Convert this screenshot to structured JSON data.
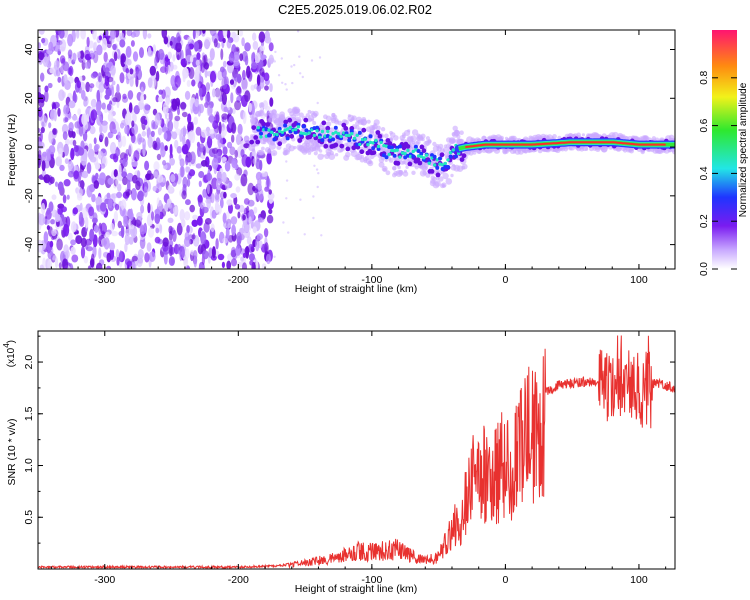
{
  "title": "C2E5.2025.019.06.02.R02",
  "chart_data": [
    {
      "type": "heatmap",
      "xlabel": "Height of straight line (km)",
      "ylabel": "Frequency (Hz)",
      "xlim": [
        -350,
        127
      ],
      "ylim": [
        -50,
        48
      ],
      "xticks": [
        -300,
        -200,
        -100,
        0,
        100
      ],
      "yticks": [
        40,
        20,
        0,
        -20,
        -40
      ],
      "noise_region_x": [
        -350,
        -175
      ],
      "signal_track": [
        {
          "x": -190,
          "y": 6
        },
        {
          "x": -170,
          "y": 6
        },
        {
          "x": -155,
          "y": 7
        },
        {
          "x": -140,
          "y": 5
        },
        {
          "x": -125,
          "y": 5
        },
        {
          "x": -110,
          "y": 3
        },
        {
          "x": -95,
          "y": 1
        },
        {
          "x": -85,
          "y": -3
        },
        {
          "x": -75,
          "y": -2
        },
        {
          "x": -65,
          "y": -3
        },
        {
          "x": -55,
          "y": -6
        },
        {
          "x": -45,
          "y": -8
        },
        {
          "x": -38,
          "y": -1
        },
        {
          "x": -30,
          "y": 0
        },
        {
          "x": -15,
          "y": 1
        },
        {
          "x": 0,
          "y": 1
        },
        {
          "x": 20,
          "y": 1
        },
        {
          "x": 50,
          "y": 2
        },
        {
          "x": 80,
          "y": 2
        },
        {
          "x": 100,
          "y": 1
        },
        {
          "x": 127,
          "y": 1
        }
      ],
      "colorbar": {
        "label": "Normalized spectral amplitude",
        "range": [
          0,
          1
        ],
        "ticks": [
          "0.0",
          "0.2",
          "0.4",
          "0.6",
          "0.8"
        ]
      }
    },
    {
      "type": "line",
      "title": "",
      "xlabel": "Height of straight line (km)",
      "ylabel": "SNR (10 * v/v)",
      "y_multiplier": "(x10",
      "y_multiplier_exp": "4",
      "xlim": [
        -350,
        127
      ],
      "ylim": [
        0,
        2.3
      ],
      "xticks": [
        -300,
        -200,
        -100,
        0,
        100
      ],
      "yticks": [
        "0.5",
        "1.0",
        "1.5",
        "2.0"
      ],
      "series": [
        {
          "color": "#e8312f",
          "x": [
            -350,
            -300,
            -250,
            -200,
            -170,
            -160,
            -150,
            -140,
            -130,
            -120,
            -110,
            -100,
            -90,
            -80,
            -70,
            -60,
            -55,
            -50,
            -45,
            -40,
            -35,
            -30,
            -25,
            -20,
            -15,
            -10,
            -5,
            0,
            5,
            10,
            15,
            20,
            25,
            30,
            40,
            50,
            60,
            70,
            80,
            90,
            100,
            110,
            120,
            127
          ],
          "y": [
            0.02,
            0.02,
            0.02,
            0.02,
            0.03,
            0.05,
            0.08,
            0.1,
            0.12,
            0.18,
            0.22,
            0.2,
            0.22,
            0.25,
            0.15,
            0.1,
            0.12,
            0.15,
            0.3,
            0.45,
            0.6,
            0.8,
            1.1,
            1.2,
            1.1,
            1.0,
            1.2,
            1.35,
            1.3,
            1.45,
            1.55,
            1.6,
            1.62,
            1.72,
            1.78,
            1.8,
            1.82,
            1.8,
            1.82,
            1.8,
            1.82,
            1.8,
            1.78,
            1.75
          ]
        }
      ]
    }
  ]
}
